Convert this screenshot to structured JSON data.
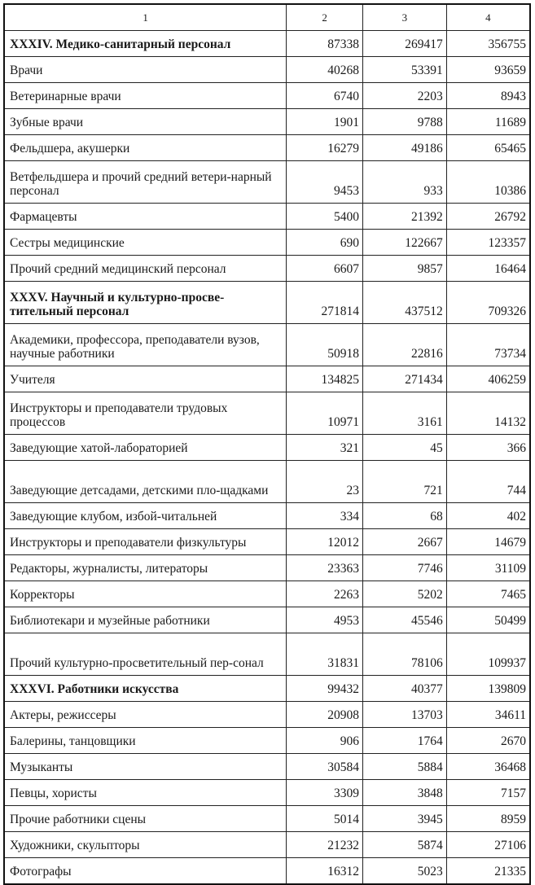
{
  "header": [
    "1",
    "2",
    "3",
    "4"
  ],
  "rows": [
    {
      "label": "XXXIV. Медико-санитарный персонал",
      "c2": "87338",
      "c3": "269417",
      "c4": "356755",
      "bold": true,
      "lines": 1
    },
    {
      "label": "Врачи",
      "c2": "40268",
      "c3": "53391",
      "c4": "93659",
      "lines": 1
    },
    {
      "label": "Ветеринарные врачи",
      "c2": "6740",
      "c3": "2203",
      "c4": "8943",
      "lines": 1
    },
    {
      "label": "Зубные врачи",
      "c2": "1901",
      "c3": "9788",
      "c4": "11689",
      "lines": 1
    },
    {
      "label": "Фельдшера, акушерки",
      "c2": "16279",
      "c3": "49186",
      "c4": "65465",
      "lines": 1
    },
    {
      "label": "Ветфельдшера и прочий средний ветери-нарный персонал",
      "c2": "9453",
      "c3": "933",
      "c4": "10386",
      "lines": 2
    },
    {
      "label": "Фармацевты",
      "c2": "5400",
      "c3": "21392",
      "c4": "26792",
      "lines": 1
    },
    {
      "label": "Сестры медицинские",
      "c2": "690",
      "c3": "122667",
      "c4": "123357",
      "lines": 1
    },
    {
      "label": "Прочий средний медицинский персонал",
      "c2": "6607",
      "c3": "9857",
      "c4": "16464",
      "lines": 1
    },
    {
      "label": "XXXV. Научный и культурно-просве-тительный персонал",
      "c2": "271814",
      "c3": "437512",
      "c4": "709326",
      "bold": true,
      "lines": 2
    },
    {
      "label": "Академики, профессора, преподаватели вузов, научные работники",
      "c2": "50918",
      "c3": "22816",
      "c4": "73734",
      "lines": 2
    },
    {
      "label": "Учителя",
      "c2": "134825",
      "c3": "271434",
      "c4": "406259",
      "lines": 1
    },
    {
      "label": "Инструкторы и преподаватели трудовых процессов",
      "c2": "10971",
      "c3": "3161",
      "c4": "14132",
      "lines": 2
    },
    {
      "label": "Заведующие хатой-лабораторией",
      "c2": "321",
      "c3": "45",
      "c4": "366",
      "lines": 1
    },
    {
      "label": "Заведующие детсадами, детскими пло-щадками",
      "c2": "23",
      "c3": "721",
      "c4": "744",
      "lines": 2
    },
    {
      "label": "Заведующие клубом, избой-читальней",
      "c2": "334",
      "c3": "68",
      "c4": "402",
      "lines": 1
    },
    {
      "label": "Инструкторы и преподаватели физкультуры",
      "c2": "12012",
      "c3": "2667",
      "c4": "14679",
      "lines": 1
    },
    {
      "label": "Редакторы, журналисты, литераторы",
      "c2": "23363",
      "c3": "7746",
      "c4": "31109",
      "lines": 1
    },
    {
      "label": "Корректоры",
      "c2": "2263",
      "c3": "5202",
      "c4": "7465",
      "lines": 1
    },
    {
      "label": "Библиотекари и музейные работники",
      "c2": "4953",
      "c3": "45546",
      "c4": "50499",
      "lines": 1
    },
    {
      "label": "Прочий культурно-просветительный пер-сонал",
      "c2": "31831",
      "c3": "78106",
      "c4": "109937",
      "lines": 2
    },
    {
      "label": "XXXVI. Работники искусства",
      "c2": "99432",
      "c3": "40377",
      "c4": "139809",
      "bold": true,
      "lines": 1
    },
    {
      "label": "Актеры, режиссеры",
      "c2": "20908",
      "c3": "13703",
      "c4": "34611",
      "lines": 1
    },
    {
      "label": "Балерины, танцовщики",
      "c2": "906",
      "c3": "1764",
      "c4": "2670",
      "lines": 1
    },
    {
      "label": "Музыканты",
      "c2": "30584",
      "c3": "5884",
      "c4": "36468",
      "lines": 1
    },
    {
      "label": "Певцы, хористы",
      "c2": "3309",
      "c3": "3848",
      "c4": "7157",
      "lines": 1
    },
    {
      "label": "Прочие работники сцены",
      "c2": "5014",
      "c3": "3945",
      "c4": "8959",
      "lines": 1
    },
    {
      "label": "Художники, скульпторы",
      "c2": "21232",
      "c3": "5874",
      "c4": "27106",
      "lines": 1
    },
    {
      "label": "Фотографы",
      "c2": "16312",
      "c3": "5023",
      "c4": "21335",
      "lines": 1
    }
  ]
}
